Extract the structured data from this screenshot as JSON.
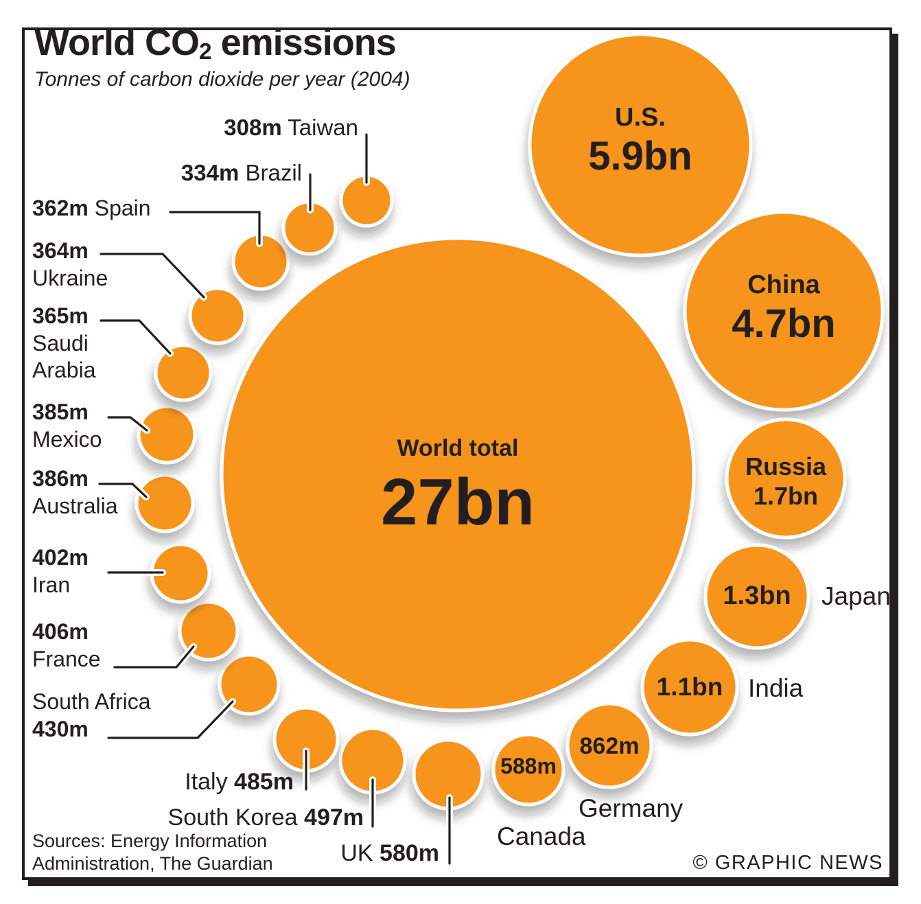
{
  "header": {
    "title_pre": "World CO",
    "title_sub": "2",
    "title_post": " emissions",
    "subtitle": "Tonnes of carbon dioxide per year (2004)"
  },
  "footer": {
    "sources_line1": "Sources: Energy Information",
    "sources_line2": "Administration, The Guardian",
    "credit": "© GRAPHIC NEWS"
  },
  "colors": {
    "bubble_orange": "#F7941E",
    "bubble_ring": "#FFFFFF",
    "ink": "#231F20"
  },
  "chart_data": {
    "type": "bubble",
    "title": "World CO2 emissions",
    "subtitle": "Tonnes of carbon dioxide per year (2004)",
    "unit": "tonnes of carbon dioxide per year",
    "year": 2004,
    "scale_note": "circle area proportional to emissions",
    "world_total": {
      "id": "world",
      "name": "World total",
      "value_label": "27bn",
      "value_million_tonnes": 27000
    },
    "countries": [
      {
        "id": "us",
        "name": "U.S.",
        "value_label": "5.9bn",
        "value_million_tonnes": 5900
      },
      {
        "id": "china",
        "name": "China",
        "value_label": "4.7bn",
        "value_million_tonnes": 4700
      },
      {
        "id": "russia",
        "name": "Russia",
        "value_label": "1.7bn",
        "value_million_tonnes": 1700
      },
      {
        "id": "japan",
        "name": "Japan",
        "value_label": "1.3bn",
        "value_million_tonnes": 1300
      },
      {
        "id": "india",
        "name": "India",
        "value_label": "1.1bn",
        "value_million_tonnes": 1100
      },
      {
        "id": "germany",
        "name": "Germany",
        "value_label": "862m",
        "value_million_tonnes": 862
      },
      {
        "id": "canada",
        "name": "Canada",
        "value_label": "588m",
        "value_million_tonnes": 588
      },
      {
        "id": "uk",
        "name": "UK",
        "value_label": "580m",
        "value_million_tonnes": 580
      },
      {
        "id": "southkorea",
        "name": "South Korea",
        "value_label": "497m",
        "value_million_tonnes": 497
      },
      {
        "id": "italy",
        "name": "Italy",
        "value_label": "485m",
        "value_million_tonnes": 485
      },
      {
        "id": "southafrica",
        "name": "South Africa",
        "value_label": "430m",
        "value_million_tonnes": 430
      },
      {
        "id": "france",
        "name": "France",
        "value_label": "406m",
        "value_million_tonnes": 406
      },
      {
        "id": "iran",
        "name": "Iran",
        "value_label": "402m",
        "value_million_tonnes": 402
      },
      {
        "id": "australia",
        "name": "Australia",
        "value_label": "386m",
        "value_million_tonnes": 386
      },
      {
        "id": "mexico",
        "name": "Mexico",
        "value_label": "385m",
        "value_million_tonnes": 385
      },
      {
        "id": "saudi",
        "name": "Saudi Arabia",
        "value_label": "365m",
        "value_million_tonnes": 365
      },
      {
        "id": "ukraine",
        "name": "Ukraine",
        "value_label": "364m",
        "value_million_tonnes": 364
      },
      {
        "id": "spain",
        "name": "Spain",
        "value_label": "362m",
        "value_million_tonnes": 362
      },
      {
        "id": "brazil",
        "name": "Brazil",
        "value_label": "334m",
        "value_million_tonnes": 334
      },
      {
        "id": "taiwan",
        "name": "Taiwan",
        "value_label": "308m",
        "value_million_tonnes": 308
      }
    ]
  }
}
